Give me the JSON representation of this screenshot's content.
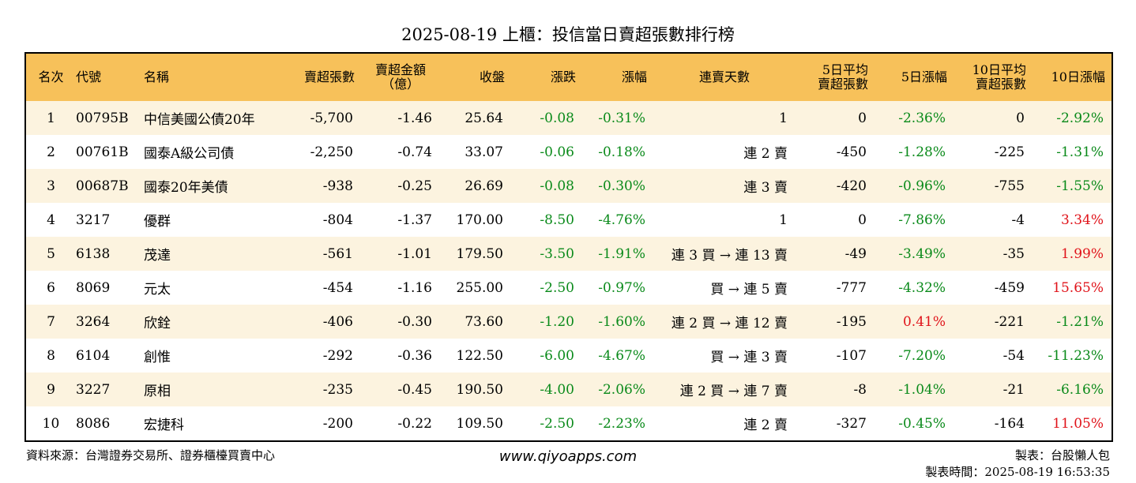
{
  "title": "2025-08-19 上櫃：投信當日賣超張數排行榜",
  "headers": {
    "rank": "名次",
    "code": "代號",
    "name": "名稱",
    "sell_lots": "賣超張數",
    "sell_amount_1": "賣超金額",
    "sell_amount_2": "（億）",
    "close": "收盤",
    "change": "漲跌",
    "change_pct": "漲幅",
    "streak": "連賣天數",
    "avg5_1": "5日平均",
    "avg5_2": "賣超張數",
    "pct5": "5日漲幅",
    "avg10_1": "10日平均",
    "avg10_2": "賣超張數",
    "pct10": "10日漲幅"
  },
  "rows": [
    {
      "rank": "1",
      "code": "00795B",
      "name": "中信美國公債20年",
      "sell_lots": "-5,700",
      "sell_amount": "-1.46",
      "close": "25.64",
      "change": "-0.08",
      "change_pct": "-0.31%",
      "streak": "1",
      "avg5": "0",
      "pct5": "-2.36%",
      "avg10": "0",
      "pct10": "-2.92%",
      "pct10_color": "green",
      "pct5_color": "green"
    },
    {
      "rank": "2",
      "code": "00761B",
      "name": "國泰A級公司債",
      "sell_lots": "-2,250",
      "sell_amount": "-0.74",
      "close": "33.07",
      "change": "-0.06",
      "change_pct": "-0.18%",
      "streak": "連 2 賣",
      "avg5": "-450",
      "pct5": "-1.28%",
      "avg10": "-225",
      "pct10": "-1.31%",
      "pct10_color": "green",
      "pct5_color": "green"
    },
    {
      "rank": "3",
      "code": "00687B",
      "name": "國泰20年美債",
      "sell_lots": "-938",
      "sell_amount": "-0.25",
      "close": "26.69",
      "change": "-0.08",
      "change_pct": "-0.30%",
      "streak": "連 3 賣",
      "avg5": "-420",
      "pct5": "-0.96%",
      "avg10": "-755",
      "pct10": "-1.55%",
      "pct10_color": "green",
      "pct5_color": "green"
    },
    {
      "rank": "4",
      "code": "3217",
      "name": "優群",
      "sell_lots": "-804",
      "sell_amount": "-1.37",
      "close": "170.00",
      "change": "-8.50",
      "change_pct": "-4.76%",
      "streak": "1",
      "avg5": "0",
      "pct5": "-7.86%",
      "avg10": "-4",
      "pct10": "3.34%",
      "pct10_color": "red",
      "pct5_color": "green"
    },
    {
      "rank": "5",
      "code": "6138",
      "name": "茂達",
      "sell_lots": "-561",
      "sell_amount": "-1.01",
      "close": "179.50",
      "change": "-3.50",
      "change_pct": "-1.91%",
      "streak": "連 3 買 → 連 13 賣",
      "avg5": "-49",
      "pct5": "-3.49%",
      "avg10": "-35",
      "pct10": "1.99%",
      "pct10_color": "red",
      "pct5_color": "green"
    },
    {
      "rank": "6",
      "code": "8069",
      "name": "元太",
      "sell_lots": "-454",
      "sell_amount": "-1.16",
      "close": "255.00",
      "change": "-2.50",
      "change_pct": "-0.97%",
      "streak": "買 → 連 5 賣",
      "avg5": "-777",
      "pct5": "-4.32%",
      "avg10": "-459",
      "pct10": "15.65%",
      "pct10_color": "red",
      "pct5_color": "green"
    },
    {
      "rank": "7",
      "code": "3264",
      "name": "欣銓",
      "sell_lots": "-406",
      "sell_amount": "-0.30",
      "close": "73.60",
      "change": "-1.20",
      "change_pct": "-1.60%",
      "streak": "連 2 買 → 連 12 賣",
      "avg5": "-195",
      "pct5": "0.41%",
      "avg10": "-221",
      "pct10": "-1.21%",
      "pct10_color": "green",
      "pct5_color": "red"
    },
    {
      "rank": "8",
      "code": "6104",
      "name": "創惟",
      "sell_lots": "-292",
      "sell_amount": "-0.36",
      "close": "122.50",
      "change": "-6.00",
      "change_pct": "-4.67%",
      "streak": "買 → 連 3 賣",
      "avg5": "-107",
      "pct5": "-7.20%",
      "avg10": "-54",
      "pct10": "-11.23%",
      "pct10_color": "green",
      "pct5_color": "green"
    },
    {
      "rank": "9",
      "code": "3227",
      "name": "原相",
      "sell_lots": "-235",
      "sell_amount": "-0.45",
      "close": "190.50",
      "change": "-4.00",
      "change_pct": "-2.06%",
      "streak": "連 2 買 → 連 7 賣",
      "avg5": "-8",
      "pct5": "-1.04%",
      "avg10": "-21",
      "pct10": "-6.16%",
      "pct10_color": "green",
      "pct5_color": "green"
    },
    {
      "rank": "10",
      "code": "8086",
      "name": "宏捷科",
      "sell_lots": "-200",
      "sell_amount": "-0.22",
      "close": "109.50",
      "change": "-2.50",
      "change_pct": "-2.23%",
      "streak": "連 2 賣",
      "avg5": "-327",
      "pct5": "-0.45%",
      "avg10": "-164",
      "pct10": "11.05%",
      "pct10_color": "red",
      "pct5_color": "green"
    }
  ],
  "footer": {
    "source": "資料來源：台灣證券交易所、證券櫃檯買賣中心",
    "website": "www.qiyoapps.com",
    "maker": "製表：台股懶人包",
    "make_time": "製表時間：2025-08-19 16:53:35"
  }
}
